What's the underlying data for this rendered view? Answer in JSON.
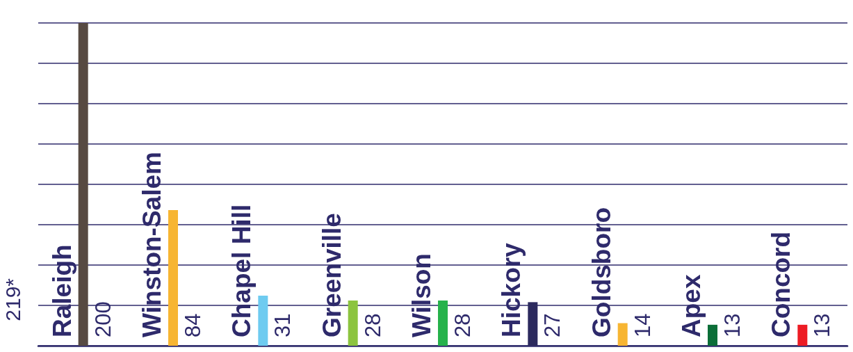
{
  "chart_data": {
    "type": "bar",
    "categories": [
      "Raleigh",
      "Winston-Salem",
      "Chapel Hill",
      "Greenville",
      "Wilson",
      "Hickory",
      "Goldsboro",
      "Apex",
      "Concord"
    ],
    "values": [
      200,
      84,
      31,
      28,
      28,
      27,
      14,
      13,
      13
    ],
    "colors": [
      "#574a42",
      "#f7b532",
      "#6ecbf0",
      "#8cc43f",
      "#26b24b",
      "#2c2a5e",
      "#f7b532",
      "#0b6e38",
      "#ed1c24"
    ],
    "ylim": [
      0,
      200
    ],
    "yticks": [
      {
        "value": 0,
        "label": null
      },
      {
        "value": 25,
        "label": null
      },
      {
        "value": 50,
        "label": null
      },
      {
        "value": 75,
        "label": null
      },
      {
        "value": 100,
        "label": null
      },
      {
        "value": 125,
        "label": null
      },
      {
        "value": 150,
        "label": null
      },
      {
        "value": 175,
        "label": null
      },
      {
        "value": 200,
        "label": null
      }
    ],
    "grid": "y",
    "data_labels": true,
    "tick_labels": "x",
    "annotations": [
      "219*"
    ]
  }
}
